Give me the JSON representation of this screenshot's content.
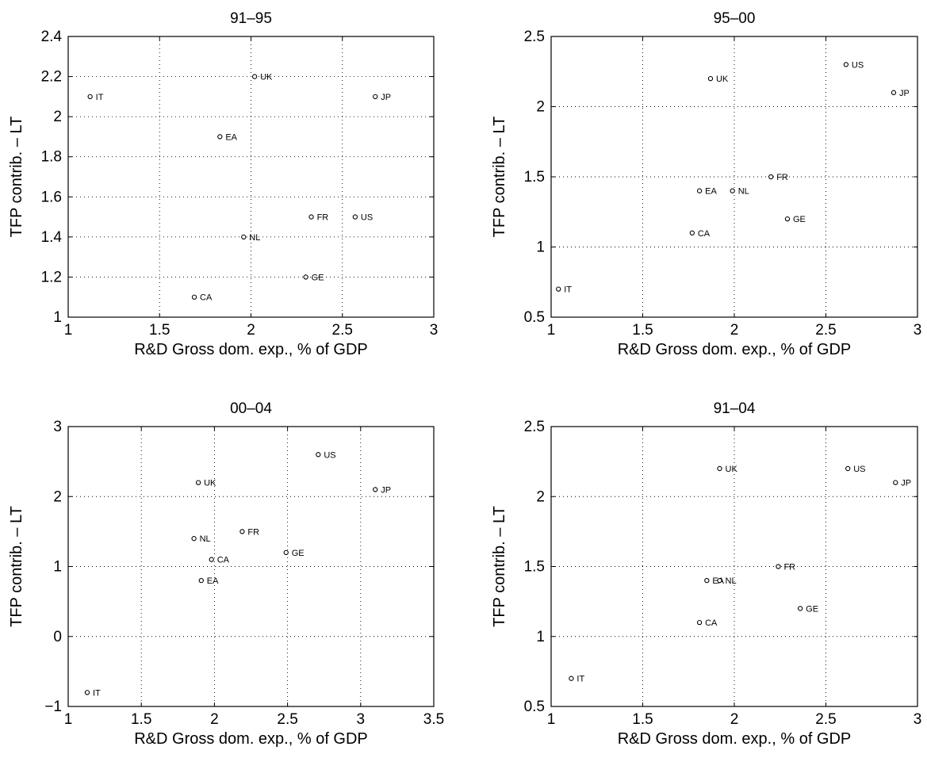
{
  "chart_data": [
    {
      "type": "scatter",
      "title": "91–95",
      "xlabel": "R&D Gross dom. exp., % of GDP",
      "ylabel": "TFP contrib. – LT",
      "xlim": [
        1,
        3
      ],
      "ylim": [
        1,
        2.4
      ],
      "xticks": [
        1,
        1.5,
        2,
        2.5,
        3
      ],
      "xtick_labels": [
        "1",
        "1.5",
        "2",
        "2.5",
        "3"
      ],
      "yticks": [
        1,
        1.2,
        1.4,
        1.6,
        1.8,
        2,
        2.2,
        2.4
      ],
      "ytick_labels": [
        "1",
        "1.2",
        "1.4",
        "1.6",
        "1.8",
        "2",
        "2.2",
        "2.4"
      ],
      "grid": true,
      "points": [
        {
          "label": "IT",
          "x": 1.12,
          "y": 2.1
        },
        {
          "label": "UK",
          "x": 2.02,
          "y": 2.2
        },
        {
          "label": "JP",
          "x": 2.68,
          "y": 2.1
        },
        {
          "label": "EA",
          "x": 1.83,
          "y": 1.9
        },
        {
          "label": "FR",
          "x": 2.33,
          "y": 1.5
        },
        {
          "label": "US",
          "x": 2.57,
          "y": 1.5
        },
        {
          "label": "NL",
          "x": 1.96,
          "y": 1.4
        },
        {
          "label": "GE",
          "x": 2.3,
          "y": 1.2
        },
        {
          "label": "CA",
          "x": 1.69,
          "y": 1.1
        }
      ]
    },
    {
      "type": "scatter",
      "title": "95–00",
      "xlabel": "R&D Gross dom. exp., % of GDP",
      "ylabel": "TFP contrib. – LT",
      "xlim": [
        1,
        3
      ],
      "ylim": [
        0.5,
        2.5
      ],
      "xticks": [
        1,
        1.5,
        2,
        2.5,
        3
      ],
      "xtick_labels": [
        "1",
        "1.5",
        "2",
        "2.5",
        "3"
      ],
      "yticks": [
        0.5,
        1,
        1.5,
        2,
        2.5
      ],
      "ytick_labels": [
        "0.5",
        "1",
        "1.5",
        "2",
        "2.5"
      ],
      "grid": true,
      "points": [
        {
          "label": "US",
          "x": 2.61,
          "y": 2.3
        },
        {
          "label": "UK",
          "x": 1.87,
          "y": 2.2
        },
        {
          "label": "JP",
          "x": 2.87,
          "y": 2.1
        },
        {
          "label": "FR",
          "x": 2.2,
          "y": 1.5
        },
        {
          "label": "EA",
          "x": 1.81,
          "y": 1.4
        },
        {
          "label": "NL",
          "x": 1.99,
          "y": 1.4
        },
        {
          "label": "GE",
          "x": 2.29,
          "y": 1.2
        },
        {
          "label": "CA",
          "x": 1.77,
          "y": 1.1
        },
        {
          "label": "IT",
          "x": 1.04,
          "y": 0.7
        }
      ]
    },
    {
      "type": "scatter",
      "title": "00–04",
      "xlabel": "R&D Gross dom. exp., % of GDP",
      "ylabel": "TFP contrib. – LT",
      "xlim": [
        1,
        3.5
      ],
      "ylim": [
        -1,
        3
      ],
      "xticks": [
        1,
        1.5,
        2,
        2.5,
        3,
        3.5
      ],
      "xtick_labels": [
        "1",
        "1.5",
        "2",
        "2.5",
        "3",
        "3.5"
      ],
      "yticks": [
        -1,
        0,
        1,
        2,
        3
      ],
      "ytick_labels": [
        "−1",
        "0",
        "1",
        "2",
        "3"
      ],
      "grid": true,
      "points": [
        {
          "label": "US",
          "x": 2.71,
          "y": 2.6
        },
        {
          "label": "UK",
          "x": 1.89,
          "y": 2.2
        },
        {
          "label": "JP",
          "x": 3.1,
          "y": 2.1
        },
        {
          "label": "FR",
          "x": 2.19,
          "y": 1.5
        },
        {
          "label": "NL",
          "x": 1.86,
          "y": 1.4
        },
        {
          "label": "GE",
          "x": 2.49,
          "y": 1.2
        },
        {
          "label": "CA",
          "x": 1.98,
          "y": 1.1
        },
        {
          "label": "EA",
          "x": 1.91,
          "y": 0.8
        },
        {
          "label": "IT",
          "x": 1.13,
          "y": -0.8
        }
      ]
    },
    {
      "type": "scatter",
      "title": "91–04",
      "xlabel": "R&D Gross dom. exp., % of GDP",
      "ylabel": "TFP contrib. – LT",
      "xlim": [
        1,
        3
      ],
      "ylim": [
        0.5,
        2.5
      ],
      "xticks": [
        1,
        1.5,
        2,
        2.5,
        3
      ],
      "xtick_labels": [
        "1",
        "1.5",
        "2",
        "2.5",
        "3"
      ],
      "yticks": [
        0.5,
        1,
        1.5,
        2,
        2.5
      ],
      "ytick_labels": [
        "0.5",
        "1",
        "1.5",
        "2",
        "2.5"
      ],
      "grid": true,
      "points": [
        {
          "label": "UK",
          "x": 1.92,
          "y": 2.2
        },
        {
          "label": "US",
          "x": 2.62,
          "y": 2.2
        },
        {
          "label": "JP",
          "x": 2.88,
          "y": 2.1
        },
        {
          "label": "FR",
          "x": 2.24,
          "y": 1.5
        },
        {
          "label": "EA",
          "x": 1.85,
          "y": 1.4
        },
        {
          "label": "NL",
          "x": 1.92,
          "y": 1.4
        },
        {
          "label": "GE",
          "x": 2.36,
          "y": 1.2
        },
        {
          "label": "CA",
          "x": 1.81,
          "y": 1.1
        },
        {
          "label": "IT",
          "x": 1.11,
          "y": 0.7
        }
      ]
    }
  ]
}
